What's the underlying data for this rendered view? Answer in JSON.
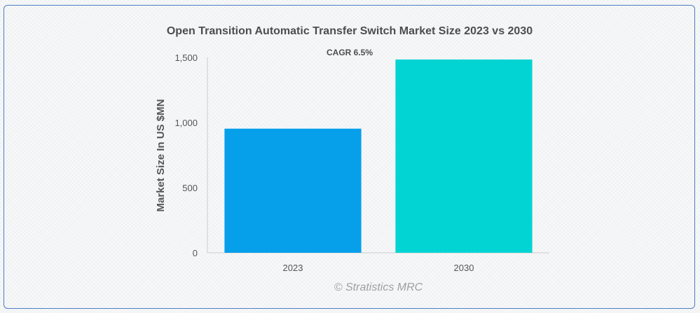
{
  "chart_data": {
    "type": "bar",
    "title": "Open Transition Automatic Transfer Switch Market Size 2023 vs 2030",
    "annotation": "CAGR 6.5%",
    "xlabel": "",
    "ylabel": "Market Size In US $MN",
    "categories": [
      "2023",
      "2030"
    ],
    "values": [
      953,
      1484
    ],
    "bar_colors": [
      "#069fea",
      "#02d4d4"
    ],
    "ylim": [
      0,
      1500
    ],
    "yticks": [
      0,
      500,
      1000,
      1500
    ],
    "ytick_labels": [
      "0",
      "500",
      "1,000",
      "1,500"
    ],
    "grid": false,
    "watermark": "© Stratistics MRC"
  }
}
